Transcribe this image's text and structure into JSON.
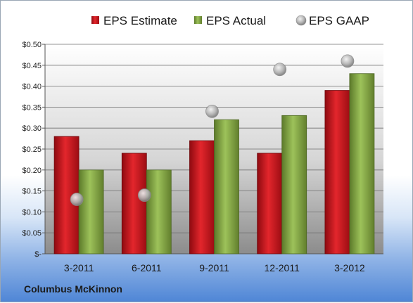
{
  "company": "Columbus McKinnon",
  "chart_data": {
    "type": "bar",
    "categories": [
      "3-2011",
      "6-2011",
      "9-2011",
      "12-2011",
      "3-2012"
    ],
    "series": [
      {
        "name": "EPS Estimate",
        "kind": "bar",
        "color": "#c8161d",
        "values": [
          0.28,
          0.24,
          0.27,
          0.24,
          0.39
        ]
      },
      {
        "name": "EPS Actual",
        "kind": "bar",
        "color": "#8cb04a",
        "values": [
          0.2,
          0.2,
          0.32,
          0.33,
          0.43
        ]
      },
      {
        "name": "EPS GAAP",
        "kind": "marker",
        "color": "#a9a9a9",
        "values": [
          0.13,
          0.14,
          0.34,
          0.44,
          0.46
        ]
      }
    ],
    "ylim": [
      0,
      0.5
    ],
    "yticks": [
      0,
      0.05,
      0.1,
      0.15,
      0.2,
      0.25,
      0.3,
      0.35,
      0.4,
      0.45,
      0.5
    ],
    "ytick_labels": [
      "$-",
      "$0.05",
      "$0.10",
      "$0.15",
      "$0.20",
      "$0.25",
      "$0.30",
      "$0.35",
      "$0.40",
      "$0.45",
      "$0.50"
    ],
    "legend_position": "top",
    "grid": true
  }
}
